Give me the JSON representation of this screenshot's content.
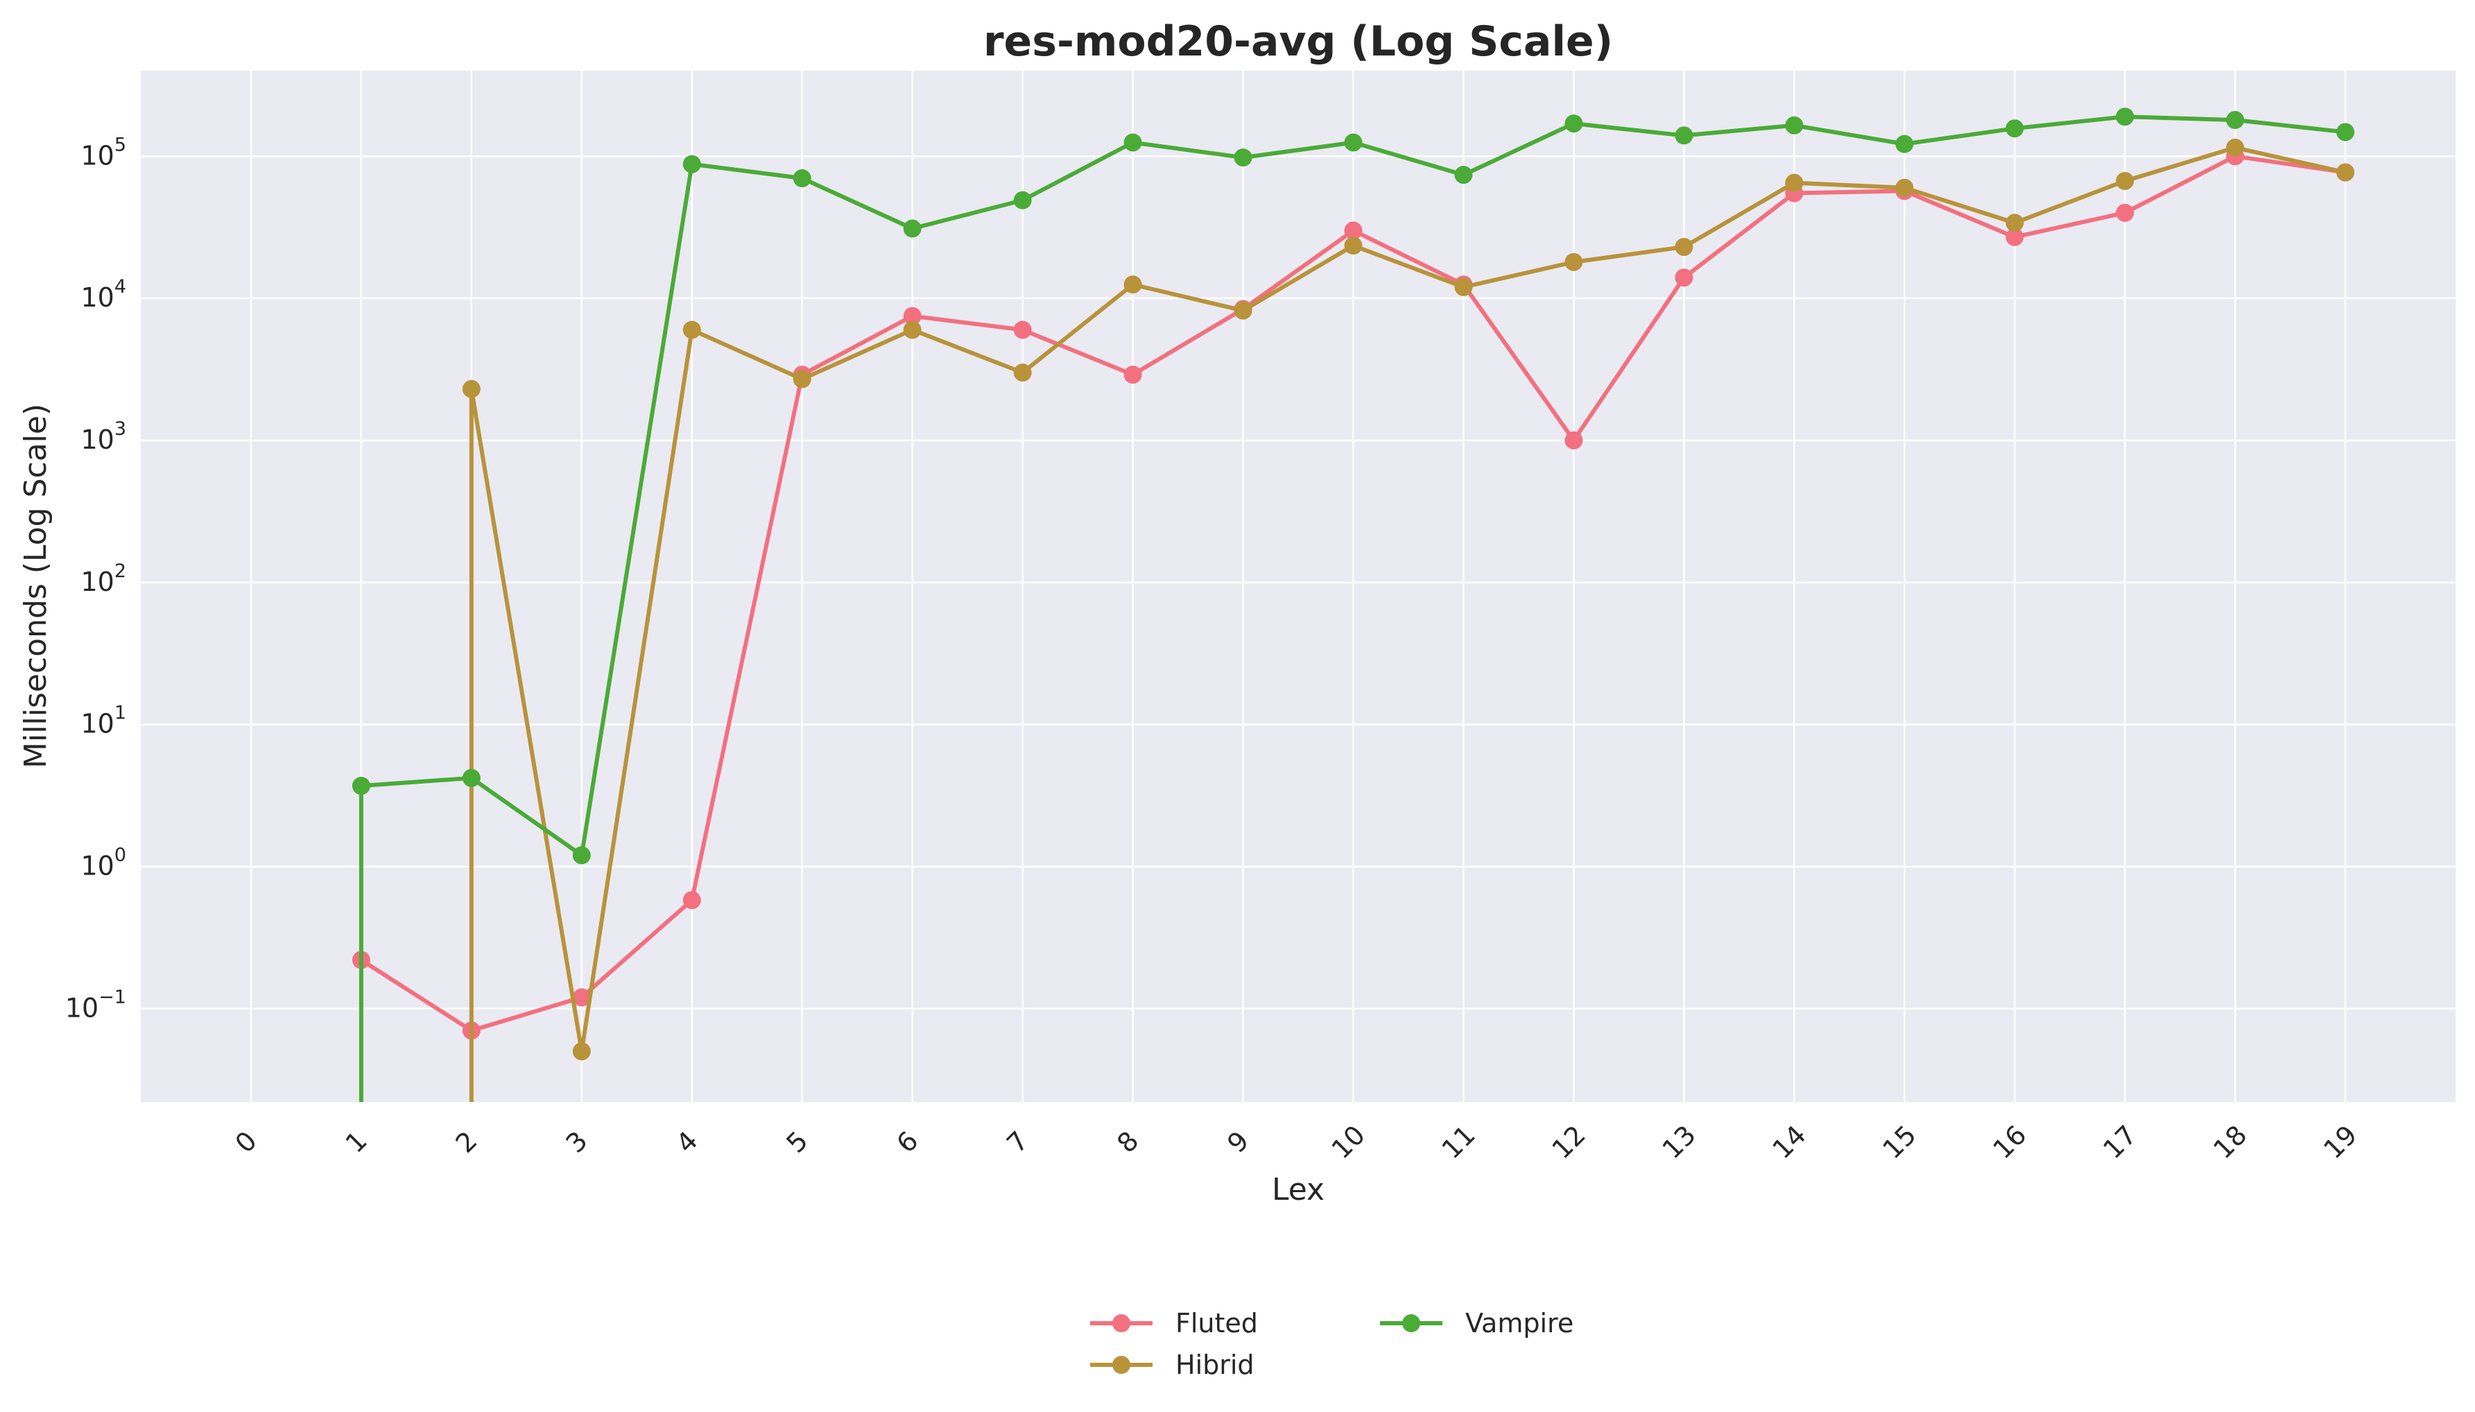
{
  "chart_data": {
    "type": "line",
    "title": "res-mod20-avg (Log Scale)",
    "xlabel": "Lex",
    "ylabel": "Milliseconds (Log Scale)",
    "yscale": "log",
    "ylim": [
      0.022,
      400000
    ],
    "xlim": [
      -1,
      20
    ],
    "x": [
      0,
      1,
      2,
      3,
      4,
      5,
      6,
      7,
      8,
      9,
      10,
      11,
      12,
      13,
      14,
      15,
      16,
      17,
      18,
      19
    ],
    "x_tick_labels": [
      "0",
      "1",
      "2",
      "3",
      "4",
      "5",
      "6",
      "7",
      "8",
      "9",
      "10",
      "11",
      "12",
      "13",
      "14",
      "15",
      "16",
      "17",
      "18",
      "19"
    ],
    "y_ticks": [
      {
        "value": 0.1,
        "base": "10",
        "exp": "−1"
      },
      {
        "value": 1,
        "base": "10",
        "exp": "0"
      },
      {
        "value": 10,
        "base": "10",
        "exp": "1"
      },
      {
        "value": 100,
        "base": "10",
        "exp": "2"
      },
      {
        "value": 1000,
        "base": "10",
        "exp": "3"
      },
      {
        "value": 10000,
        "base": "10",
        "exp": "4"
      },
      {
        "value": 100000,
        "base": "10",
        "exp": "5"
      }
    ],
    "grid": true,
    "legend_position": "bottom-center",
    "background": "#eaeaf2",
    "series": [
      {
        "name": "Fluted",
        "color": "#f2707f",
        "values": [
          null,
          0.22,
          0.07,
          0.12,
          0.58,
          2900,
          7500,
          6000,
          2900,
          8400,
          30000,
          12500,
          1000,
          14000,
          55000,
          57000,
          27000,
          40000,
          100000,
          77000
        ]
      },
      {
        "name": "Hibrid",
        "color": "#b8933a",
        "values": [
          null,
          null,
          2300,
          0.05,
          6000,
          2700,
          6000,
          3000,
          12500,
          8200,
          23500,
          12000,
          18000,
          23000,
          65000,
          60000,
          34000,
          67000,
          115000,
          77000
        ]
      },
      {
        "name": "Vampire",
        "color": "#4aab37",
        "values": [
          null,
          3.7,
          4.2,
          1.2,
          88000,
          70000,
          31000,
          49000,
          125000,
          98000,
          125000,
          74000,
          170000,
          140000,
          165000,
          122000,
          157000,
          190000,
          180000,
          148000
        ]
      }
    ],
    "drops_to_zero": [
      {
        "series": "Vampire",
        "x": 1
      },
      {
        "series": "Hibrid",
        "x": 2
      }
    ]
  }
}
